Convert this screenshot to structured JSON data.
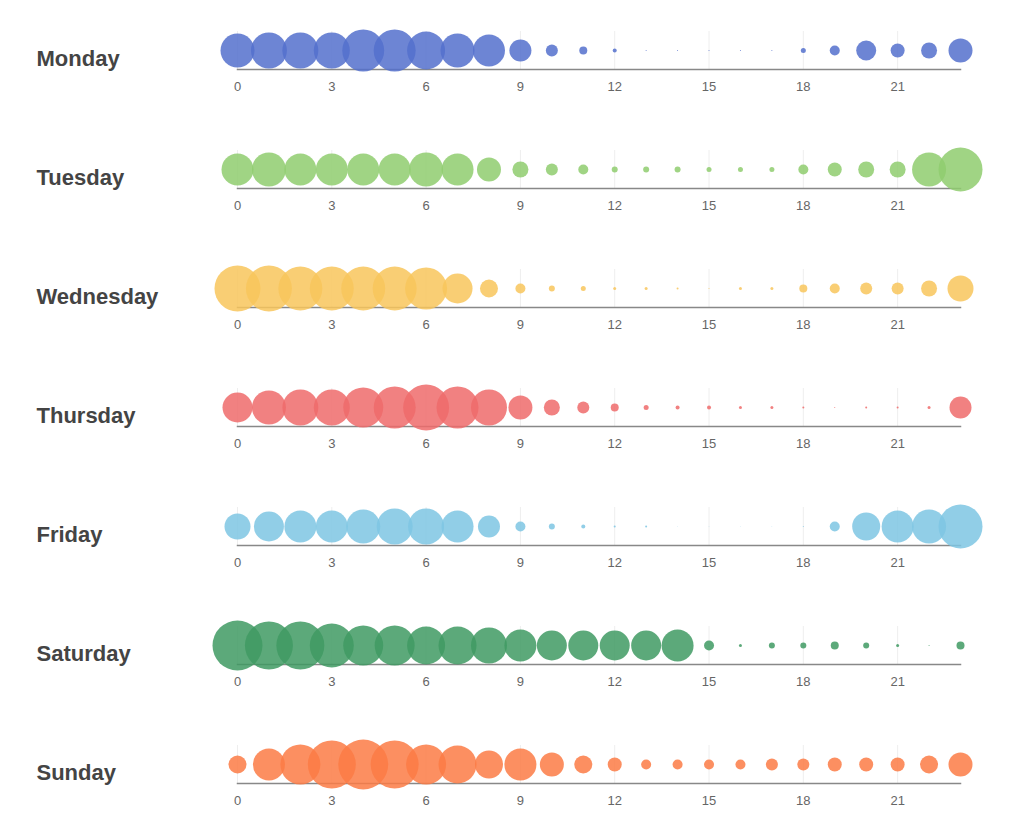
{
  "chart_data": {
    "type": "bubble",
    "x": [
      0,
      1,
      2,
      3,
      4,
      5,
      6,
      7,
      8,
      9,
      10,
      11,
      12,
      13,
      14,
      15,
      16,
      17,
      18,
      19,
      20,
      21,
      22,
      23
    ],
    "xlim": [
      0,
      23
    ],
    "xticks": [
      0,
      3,
      6,
      9,
      12,
      15,
      18,
      21
    ],
    "categories": [
      "Monday",
      "Tuesday",
      "Wednesday",
      "Thursday",
      "Friday",
      "Saturday",
      "Sunday"
    ],
    "series": [
      {
        "name": "Monday",
        "color": "#5470cc",
        "sizes": [
          17,
          18,
          18,
          18,
          21,
          21,
          19,
          17,
          16,
          11,
          6,
          4,
          2,
          0.5,
          0.5,
          0.5,
          0.5,
          0.5,
          2.5,
          5,
          10,
          7,
          8,
          12
        ]
      },
      {
        "name": "Tuesday",
        "color": "#8fcc6f",
        "sizes": [
          16,
          17,
          16,
          16,
          16,
          16,
          17,
          16,
          12,
          8,
          6,
          5,
          3,
          3,
          3,
          2.5,
          2.5,
          2.5,
          5,
          7,
          8,
          8,
          17,
          22
        ]
      },
      {
        "name": "Wednesday",
        "color": "#f8c55c",
        "sizes": [
          23,
          23,
          22,
          22,
          22,
          22,
          21,
          15,
          9,
          5,
          3,
          2.5,
          1.5,
          1.5,
          1,
          0.5,
          1.5,
          1.5,
          4,
          5,
          6,
          6,
          8,
          13
        ]
      },
      {
        "name": "Thursday",
        "color": "#ee6b6b",
        "sizes": [
          15,
          17,
          18,
          18,
          20,
          21,
          23,
          21,
          18,
          12,
          8,
          6,
          4,
          2.5,
          2,
          2,
          1.5,
          1.5,
          1,
          0.5,
          1,
          1,
          1.5,
          11
        ]
      },
      {
        "name": "Friday",
        "color": "#7ec6e3",
        "sizes": [
          13,
          15,
          16,
          16,
          17,
          18,
          18,
          16,
          11,
          5,
          3,
          2,
          1,
          1,
          0.3,
          0.3,
          0.3,
          0.3,
          0.5,
          5,
          14,
          16,
          17,
          22
        ]
      },
      {
        "name": "Saturday",
        "color": "#3f9a63",
        "sizes": [
          25,
          24,
          24,
          22,
          20,
          20,
          19,
          19,
          18,
          16,
          15,
          15,
          15,
          15,
          16,
          5,
          1.5,
          3,
          3,
          4,
          3,
          1.5,
          0.5,
          4
        ]
      },
      {
        "name": "Sunday",
        "color": "#fb7b45",
        "sizes": [
          9,
          16,
          20,
          24,
          25,
          24,
          20,
          19,
          14,
          16,
          12,
          9,
          7,
          5,
          5,
          5,
          5,
          6,
          6,
          7,
          7,
          7,
          9,
          12
        ]
      }
    ]
  }
}
